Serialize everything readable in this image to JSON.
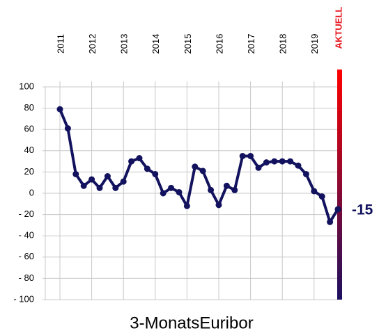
{
  "chart_data": {
    "type": "line",
    "title": "3-MonatsEuribor",
    "categories": [
      "2011",
      null,
      null,
      null,
      "2012",
      null,
      null,
      null,
      "2013",
      null,
      null,
      null,
      "2014",
      null,
      null,
      null,
      "2015",
      null,
      null,
      null,
      "2016",
      null,
      null,
      null,
      "2017",
      null,
      null,
      null,
      "2018",
      null,
      null,
      null,
      "2019",
      null,
      null,
      "AKTUELL"
    ],
    "series": [
      {
        "name": "3-MonatsEuribor",
        "color": "#12125e",
        "values": [
          79,
          61,
          18,
          7,
          13,
          5,
          16,
          5,
          11,
          30,
          33,
          23,
          18,
          0,
          5,
          1,
          -12,
          25,
          21,
          3,
          -11,
          7,
          3,
          35,
          35,
          24,
          29,
          30,
          30,
          30,
          26,
          18,
          2,
          -3,
          -27,
          -15
        ]
      }
    ],
    "ylim": [
      -100,
      100
    ],
    "yticks": [
      {
        "value": -100,
        "label": "- 100"
      },
      {
        "value": -80,
        "label": "- 80"
      },
      {
        "value": -60,
        "label": "- 60"
      },
      {
        "value": -40,
        "label": "- 40"
      },
      {
        "value": -20,
        "label": "- 20"
      },
      0,
      20,
      40,
      60,
      80,
      100
    ],
    "grid": true,
    "current_label_color": "#e8141c",
    "current_bar_colors": [
      "#ff0000",
      "#1c1060"
    ]
  }
}
